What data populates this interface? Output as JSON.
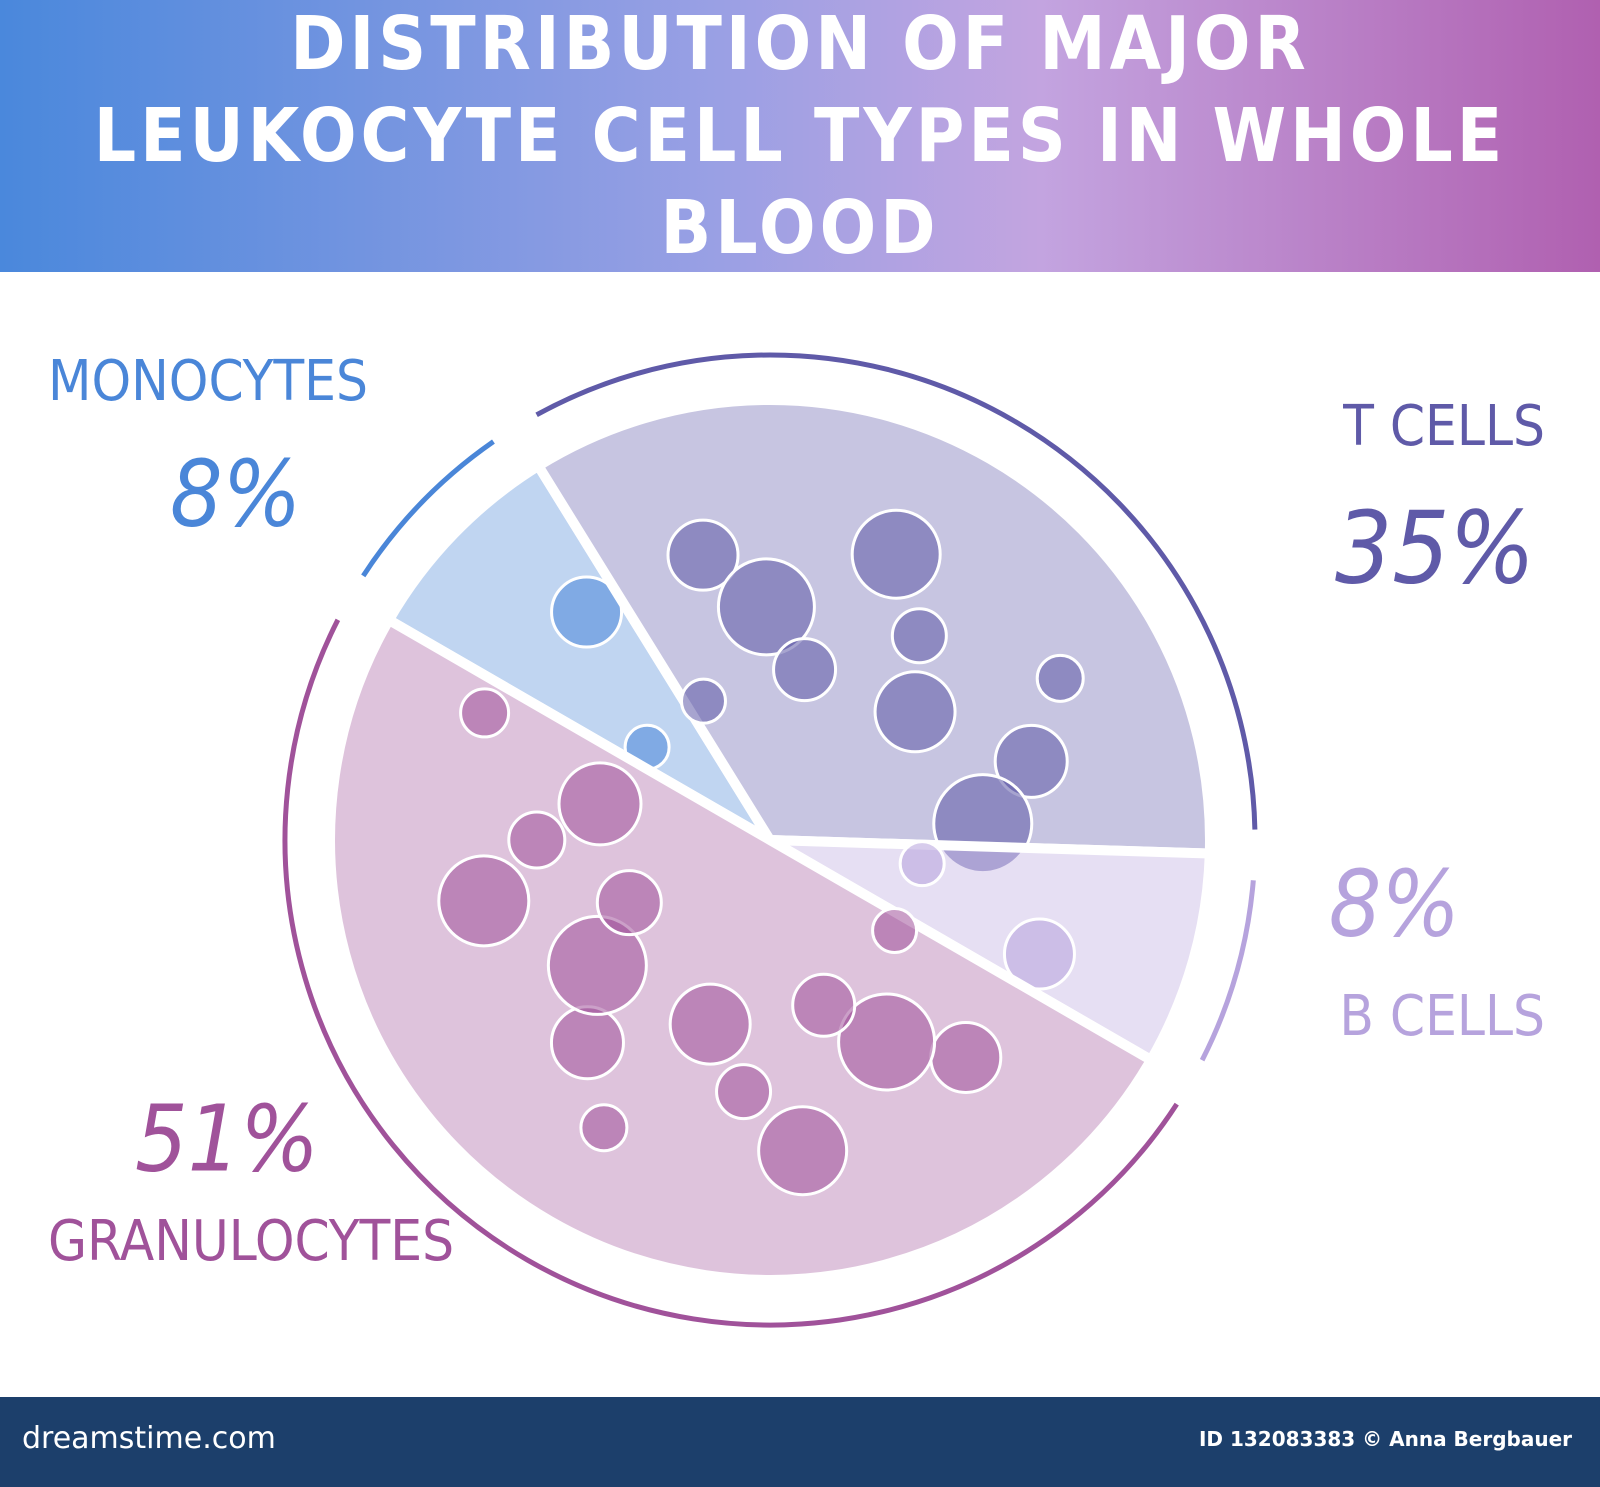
{
  "chart_data": {
    "type": "pie",
    "title": "DISTRIBUTION OF MAJOR LEUKOCYTE CELL TYPES IN WHOLE BLOOD",
    "categories": [
      "MONOCYTES",
      "T CELLS",
      "B CELLS",
      "GRANULOCYTES"
    ],
    "values": [
      8,
      35,
      8,
      51
    ],
    "value_labels": [
      "8%",
      "35%",
      "8%",
      "51%"
    ],
    "colors": [
      "#4a86d8",
      "#5f5aa8",
      "#b6a3dd",
      "#a0529a"
    ]
  },
  "footer": {
    "site": "dreamstime.com",
    "credit": "ID 132083383 © Anna Bergbauer"
  }
}
